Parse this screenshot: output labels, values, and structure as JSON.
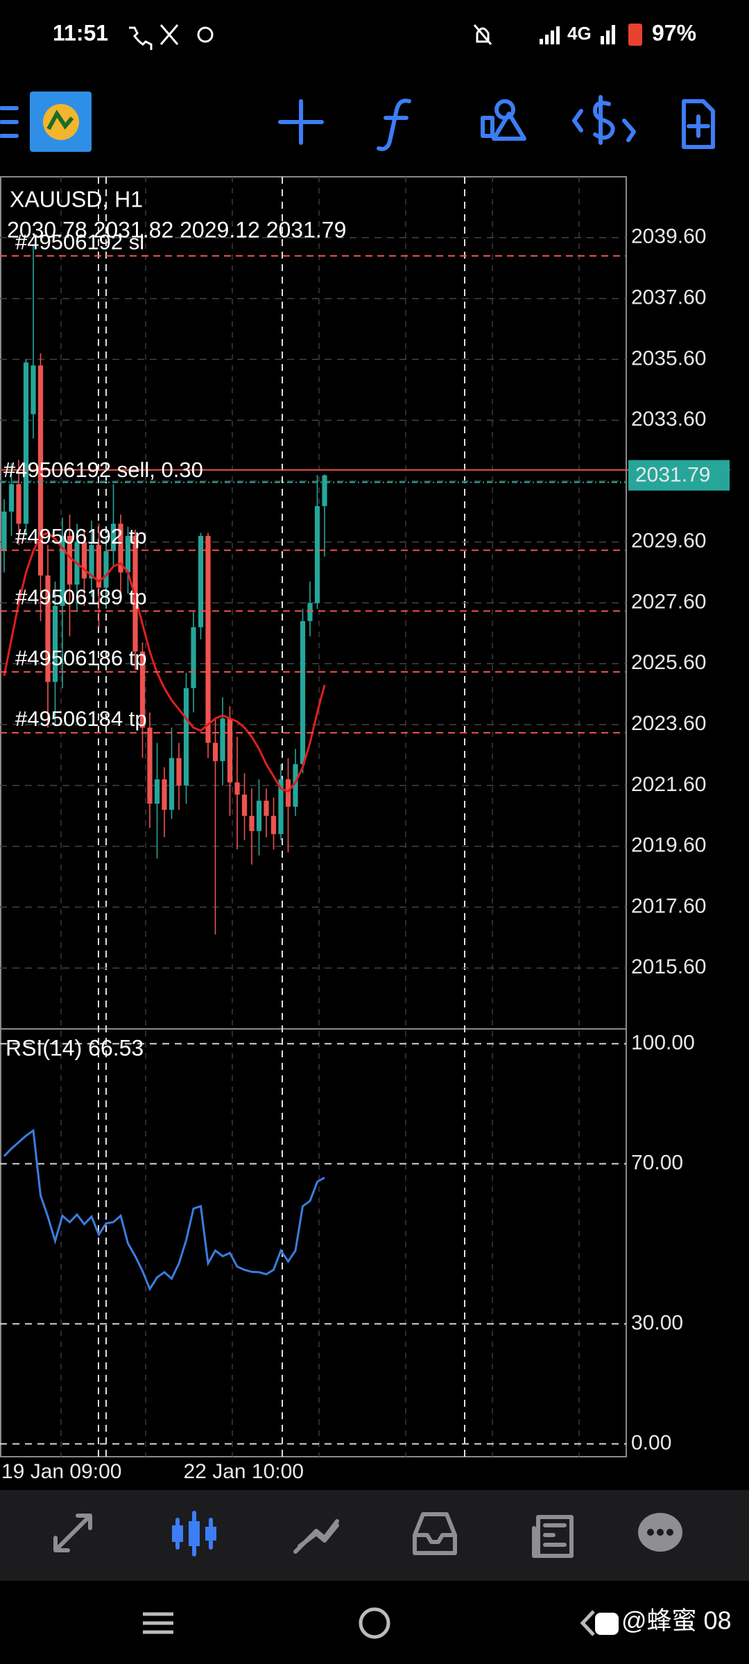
{
  "status_bar": {
    "time": "11:51",
    "network": "4G",
    "battery": "97%"
  },
  "chart_data": [
    {
      "type": "candlestick",
      "title": "XAUUSD, H1",
      "subtitle": "2030.78 2031.82 2029.12 2031.79",
      "categories": [
        "19 Jan 09:00",
        null,
        null,
        null,
        null,
        null,
        null,
        null,
        null,
        null,
        null,
        null,
        null,
        null,
        null,
        null,
        null,
        null,
        null,
        null,
        null,
        null,
        null,
        null,
        null,
        "22 Jan 10:00",
        null,
        null,
        null,
        null,
        null,
        null,
        null,
        null,
        null,
        null,
        null,
        null,
        null,
        null,
        null,
        null,
        null,
        null,
        null
      ],
      "open": [
        2029.3,
        2030.6,
        2031.5,
        2030.2,
        2033.8,
        2035.4,
        2028.5,
        2025.0,
        2027.5,
        2029.8,
        2028.2,
        2029.6,
        2028.4,
        2029.5,
        2028.1,
        2029.3,
        2030.2,
        2028.6,
        2029.8,
        2026.0,
        2023.5,
        2021.0,
        2021.8,
        2020.8,
        2022.5,
        2021.6,
        2024.8,
        2026.8,
        2029.8,
        2023.0,
        2022.4,
        2023.8,
        2021.7,
        2021.3,
        2020.6,
        2020.1,
        2021.1,
        2020.6,
        2020.0,
        2021.8,
        2020.9,
        2022.3,
        2027.0,
        2027.6,
        2030.78
      ],
      "high": [
        2031.0,
        2032.2,
        2032.3,
        2035.6,
        2039.4,
        2035.8,
        2029.5,
        2028.3,
        2030.4,
        2030.5,
        2030.2,
        2030.0,
        2030.3,
        2030.2,
        2029.8,
        2031.5,
        2030.5,
        2030.1,
        2030.0,
        2026.3,
        2024.0,
        2023.0,
        2022.2,
        2023.5,
        2023.0,
        2025.3,
        2027.3,
        2029.9,
        2029.9,
        2023.8,
        2024.5,
        2024.2,
        2023.2,
        2022.0,
        2021.5,
        2021.8,
        2021.5,
        2021.2,
        2022.3,
        2022.5,
        2022.8,
        2027.4,
        2028.3,
        2031.8,
        2031.82
      ],
      "low": [
        2028.6,
        2029.8,
        2029.5,
        2029.8,
        2033.0,
        2027.0,
        2023.5,
        2023.6,
        2024.8,
        2026.5,
        2027.3,
        2027.5,
        2027.8,
        2026.8,
        2027.4,
        2028.8,
        2027.8,
        2027.9,
        2025.4,
        2022.5,
        2020.2,
        2019.2,
        2019.9,
        2020.5,
        2020.8,
        2021.0,
        2024.0,
        2026.4,
        2022.5,
        2016.7,
        2021.6,
        2020.6,
        2019.5,
        2019.8,
        2019.0,
        2019.3,
        2019.9,
        2019.5,
        2019.8,
        2019.4,
        2020.6,
        2022.0,
        2026.5,
        2027.4,
        2029.12
      ],
      "close": [
        2030.6,
        2031.5,
        2030.2,
        2035.5,
        2035.4,
        2028.5,
        2025.0,
        2027.5,
        2029.8,
        2028.2,
        2029.6,
        2028.4,
        2029.5,
        2028.1,
        2029.3,
        2030.2,
        2028.6,
        2029.8,
        2026.0,
        2023.5,
        2021.0,
        2021.8,
        2020.8,
        2022.5,
        2021.6,
        2024.8,
        2026.8,
        2029.8,
        2023.0,
        2022.4,
        2023.8,
        2021.7,
        2021.3,
        2020.6,
        2020.1,
        2021.1,
        2020.6,
        2020.0,
        2021.8,
        2020.9,
        2022.3,
        2027.0,
        2027.6,
        2030.78,
        2031.79
      ],
      "up_color": "#26a69a",
      "down_color": "#ef5350",
      "ma": {
        "color": "#e01e1e",
        "values": [
          2025.2,
          2026.4,
          2027.6,
          2028.6,
          2029.3,
          2029.8,
          2029.9,
          2029.7,
          2029.4,
          2029.1,
          2028.9,
          2028.7,
          2028.5,
          2028.3,
          2028.5,
          2028.8,
          2028.9,
          2028.6,
          2027.8,
          2026.9,
          2026.0,
          2025.3,
          2024.8,
          2024.4,
          2024.1,
          2023.8,
          2023.5,
          2023.4,
          2023.6,
          2023.8,
          2023.9,
          2023.8,
          2023.7,
          2023.5,
          2023.2,
          2022.8,
          2022.3,
          2021.9,
          2021.5,
          2021.4,
          2021.7,
          2022.2,
          2023.0,
          2024.0,
          2024.9
        ]
      },
      "position": {
        "label": "#49506192 sell, 0.30",
        "value": 2031.97
      },
      "orders": [
        {
          "label": "#49506192 sl",
          "value": 2039.0
        },
        {
          "label": "#49506192 tp",
          "value": 2029.33
        },
        {
          "label": "#49506189 tp",
          "value": 2027.33
        },
        {
          "label": "#49506186 tp",
          "value": 2025.33
        },
        {
          "label": "#49506184 tp",
          "value": 2023.33
        }
      ],
      "last_price": 2031.79,
      "last_price_color": "#26a69a",
      "ylim": [
        2013.6,
        2041.6
      ],
      "yticks": [
        {
          "value": 2015.6,
          "label": "2015.60"
        },
        {
          "value": 2017.6,
          "label": "2017.60"
        },
        {
          "value": 2019.6,
          "label": "2019.60"
        },
        {
          "value": 2021.6,
          "label": "2021.60"
        },
        {
          "value": 2023.6,
          "label": "2023.60"
        },
        {
          "value": 2025.6,
          "label": "2025.60"
        },
        {
          "value": 2027.6,
          "label": "2027.60"
        },
        {
          "value": 2029.6,
          "label": "2029.60"
        },
        {
          "value": 2031.6,
          "label": "2031.60"
        },
        {
          "value": 2033.6,
          "label": "2033.60"
        },
        {
          "value": 2035.6,
          "label": "2035.60"
        },
        {
          "value": 2037.6,
          "label": "2037.60"
        },
        {
          "value": 2039.6,
          "label": "2039.60"
        }
      ],
      "grid": true
    },
    {
      "type": "line",
      "title": "RSI(14) 66.53",
      "series": [
        {
          "color": "#3b7de0",
          "values": [
            71.9,
            73.8,
            75.4,
            77.0,
            78.3,
            62.1,
            56.8,
            50.7,
            57.0,
            55.4,
            57.3,
            54.9,
            56.8,
            52.3,
            55.1,
            55.4,
            57.0,
            50.1,
            46.9,
            43.2,
            38.7,
            41.6,
            42.9,
            41.3,
            45.1,
            50.9,
            58.8,
            59.4,
            45.1,
            48.3,
            46.9,
            47.7,
            44.3,
            43.5,
            43.0,
            42.9,
            42.4,
            43.5,
            48.3,
            45.6,
            48.3,
            59.4,
            60.7,
            65.5,
            66.53
          ]
        }
      ],
      "ylim": [
        -3.2,
        103.7
      ],
      "yticks": [
        {
          "value": 0,
          "label": "0.00"
        },
        {
          "value": 30,
          "label": "30.00"
        },
        {
          "value": 70,
          "label": "70.00"
        },
        {
          "value": 100,
          "label": "100.00"
        }
      ],
      "grid": true
    }
  ],
  "watermark": "@蜂蜜 08"
}
